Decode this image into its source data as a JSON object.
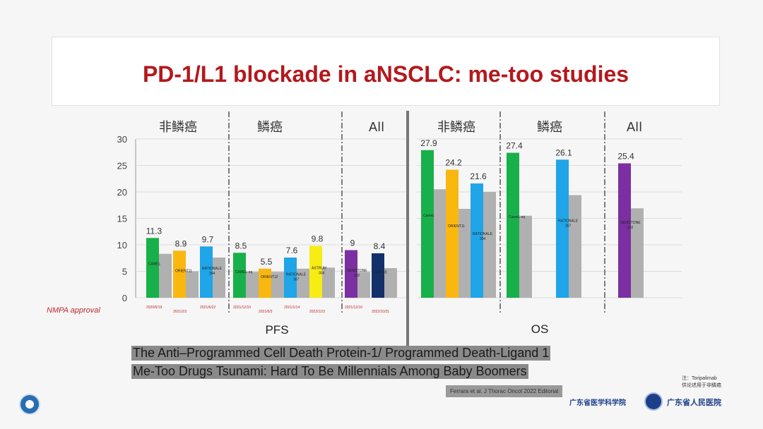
{
  "title": "PD-1/L1 blockade in aNSCLC: me-too studies",
  "nmpa_label": "NMPA approval",
  "caption": {
    "line1": "The Anti–Programmed Cell Death Protein-1/ Programmed Death-Ligand 1",
    "line2": "Me-Too Drugs Tsunami: Hard To Be Millennials Among Baby Boomers"
  },
  "citation": "Ferrara et al. J Thorac Oncol 2022 Editorial",
  "side_note": {
    "line1": "注：Toripalimab",
    "line2": "供论述用于非鳞癌"
  },
  "org_name": "广东省医学科学院",
  "hospital_name": "广东省人民医院",
  "chart_data": {
    "type": "bar",
    "ylim": [
      0,
      30
    ],
    "yticks": [
      0,
      5,
      10,
      15,
      20,
      25,
      30
    ],
    "grid": true,
    "colors": {
      "green": "#18b04a",
      "orange": "#f9b70f",
      "blue": "#1fa5e8",
      "yellow": "#f7ec14",
      "purple": "#7b2fa0",
      "navy": "#13306b",
      "gray": "#b0b0b0"
    },
    "panels": [
      {
        "name": "PFS",
        "groups": [
          {
            "header": "非鳞癌",
            "bars": [
              {
                "value": 11.3,
                "label": "11.3",
                "color": "green",
                "trial": "CAMEL",
                "control": 8.3,
                "date": "2020/6/19"
              },
              {
                "value": 8.9,
                "label": "8.9",
                "color": "orange",
                "trial": "ORIENT11",
                "control": 5.0,
                "date": "2021/2/2"
              },
              {
                "value": 9.7,
                "label": "9.7",
                "color": "blue",
                "trial": "RATIONALE 304",
                "control": 7.6,
                "date": "2021/6/22"
              }
            ]
          },
          {
            "header": "鳞癌",
            "bars": [
              {
                "value": 8.5,
                "label": "8.5",
                "color": "green",
                "trial": "CAMEL-sq",
                "control": 4.9,
                "date": "2021/12/10"
              },
              {
                "value": 5.5,
                "label": "5.5",
                "color": "orange",
                "trial": "ORIENT12",
                "control": 4.9,
                "date": "2021/6/3"
              },
              {
                "value": 7.6,
                "label": "7.6",
                "color": "blue",
                "trial": "RATIONALE 307",
                "control": 5.5,
                "date": "2021/1/14"
              },
              {
                "value": 9.8,
                "label": "9.8",
                "color": "yellow",
                "trial": "ASTRUM 004",
                "control": 5.7,
                "date": "2022/11/3"
              }
            ]
          },
          {
            "header": "All",
            "bars": [
              {
                "value": 9.0,
                "label": "9",
                "color": "purple",
                "trial": "GEMSTONE 302",
                "control": 4.9,
                "date": "2021/12/10"
              },
              {
                "value": 8.4,
                "label": "8.4",
                "color": "navy",
                "trial": "CHOICE 01",
                "control": 5.6,
                "date": "2022/10/31"
              }
            ]
          }
        ]
      },
      {
        "name": "OS",
        "groups": [
          {
            "header": "非鳞癌",
            "bars": [
              {
                "value": 27.9,
                "label": "27.9",
                "color": "green",
                "trial": "CameL",
                "control": 20.5
              },
              {
                "value": 24.2,
                "label": "24.2",
                "color": "orange",
                "trial": "ORIENT11",
                "control": 16.8
              },
              {
                "value": 21.6,
                "label": "21.6",
                "color": "blue",
                "trial": "RATIONALE 304",
                "control": 20.0
              }
            ]
          },
          {
            "header": "鳞癌",
            "bars": [
              {
                "value": 27.4,
                "label": "27.4",
                "color": "green",
                "trial": "CameL-sq",
                "control": 15.5
              },
              {
                "value": 26.1,
                "label": "26.1",
                "color": "blue",
                "trial": "RATIONALE 307",
                "control": 19.4
              }
            ]
          },
          {
            "header": "All",
            "bars": [
              {
                "value": 25.4,
                "label": "25.4",
                "color": "purple",
                "trial": "GEMSTONE 302",
                "control": 16.9
              }
            ]
          }
        ]
      }
    ]
  }
}
